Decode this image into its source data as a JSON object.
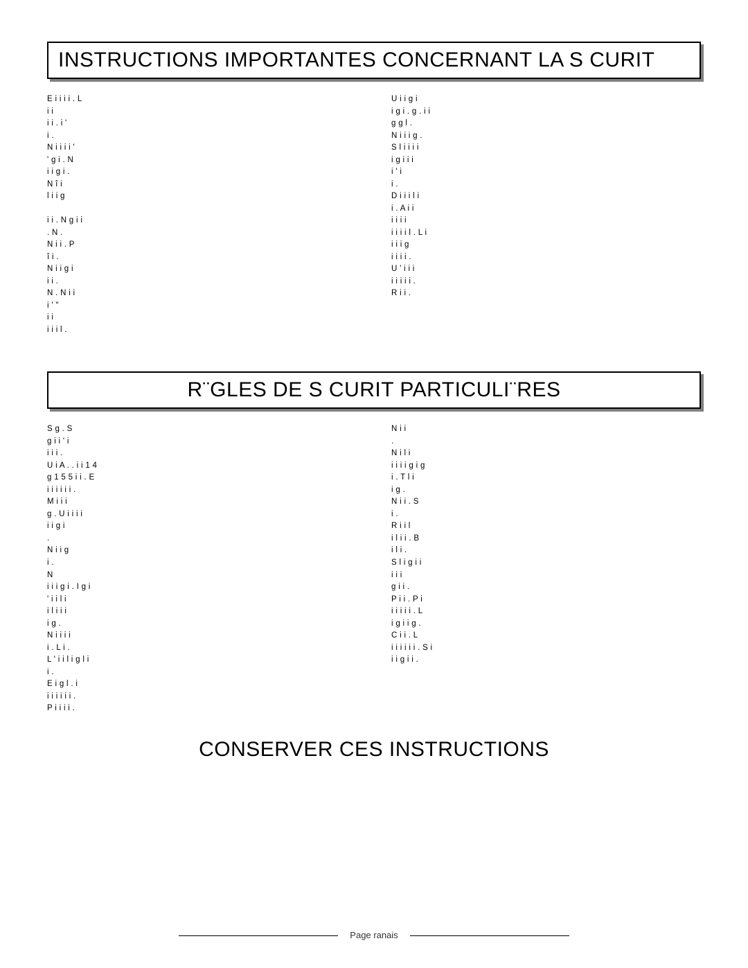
{
  "section1": {
    "title": "INSTRUCTIONS IMPORTANTES CONCERNANT LA S CURIT",
    "left": [
      "E    i    i i i .  L",
      "     i  i",
      "i i  .  i '",
      "  i .",
      "N  i i    i i    '",
      "    ' g i  .  N",
      "i i    g i  .",
      "N   î   i",
      "    l i      i g",
      "",
      " i   i .  N g  i   i",
      " .  N    .",
      "N   i   i     .  P",
      "  î   i   .",
      "N i   i g   i",
      " i  i .",
      "N       .  N  i i",
      "i '   \"",
      "  i     i",
      " i   i i  l ."
    ],
    "right": [
      "U  i   i   g   i",
      "i g i  . g .  i i",
      "g   g  l .",
      "N  i i      i    g .",
      "S l   i   i  i  i",
      "  i   g  i   i  i",
      "  i    '  i",
      " i .",
      "D  i   i i   l i",
      " i    . A  i   i",
      "  i   i  i  i",
      "i i i   i   l .  L  i",
      " i i  i   g",
      " i   i      i i .",
      "U    ' i   i i",
      " i   i i   i  i  .",
      "R  i i  ."
    ]
  },
  "section2": {
    "title": "R¨GLES DE S CURIT  PARTICULI¨RES",
    "left": [
      "S   g    .  S",
      "g   i i ' i",
      "i   i i .",
      "U  i  A . .  i  i  1 4",
      " g   1 5   5  i  i .  E",
      "i i   i  i i i .",
      "M   i   i  i",
      "g .  U  i i i   i",
      " i  i g    i",
      " .",
      "N   i i g",
      " i .",
      "N",
      "i  i   i g i  .  I g i",
      "  ' i   i  l i",
      "i   l i   i i",
      "  i    g .",
      "N  i i   i  i",
      " i .  L i    .",
      "L ' i i  l  i  g   l i",
      "   i       .",
      "E  i g  l .     i",
      " i i  i  i  i i .",
      "P i   i   i i ."
    ],
    "right": [
      "N    i   i",
      " .",
      "N  i    l i",
      " i i  i   i g   i  g",
      "   i .  T   l i",
      "i g    .",
      "N  i   i    .  S",
      "  i .",
      "R  i    i   l",
      " i   l i    i .  B",
      "i   l i .",
      "S l i  g  i  i",
      " i   i        i",
      "g   i   i .",
      "P  i i .  P   i",
      "i i   i   i   i .  L",
      " i g  i   i   g .",
      "C   i i .  L",
      "i i  i i   i i .  S  i",
      "  i  i  g    i i ."
    ]
  },
  "finalHeading": "CONSERVER CES INSTRUCTIONS",
  "footer": "Page   ranais"
}
